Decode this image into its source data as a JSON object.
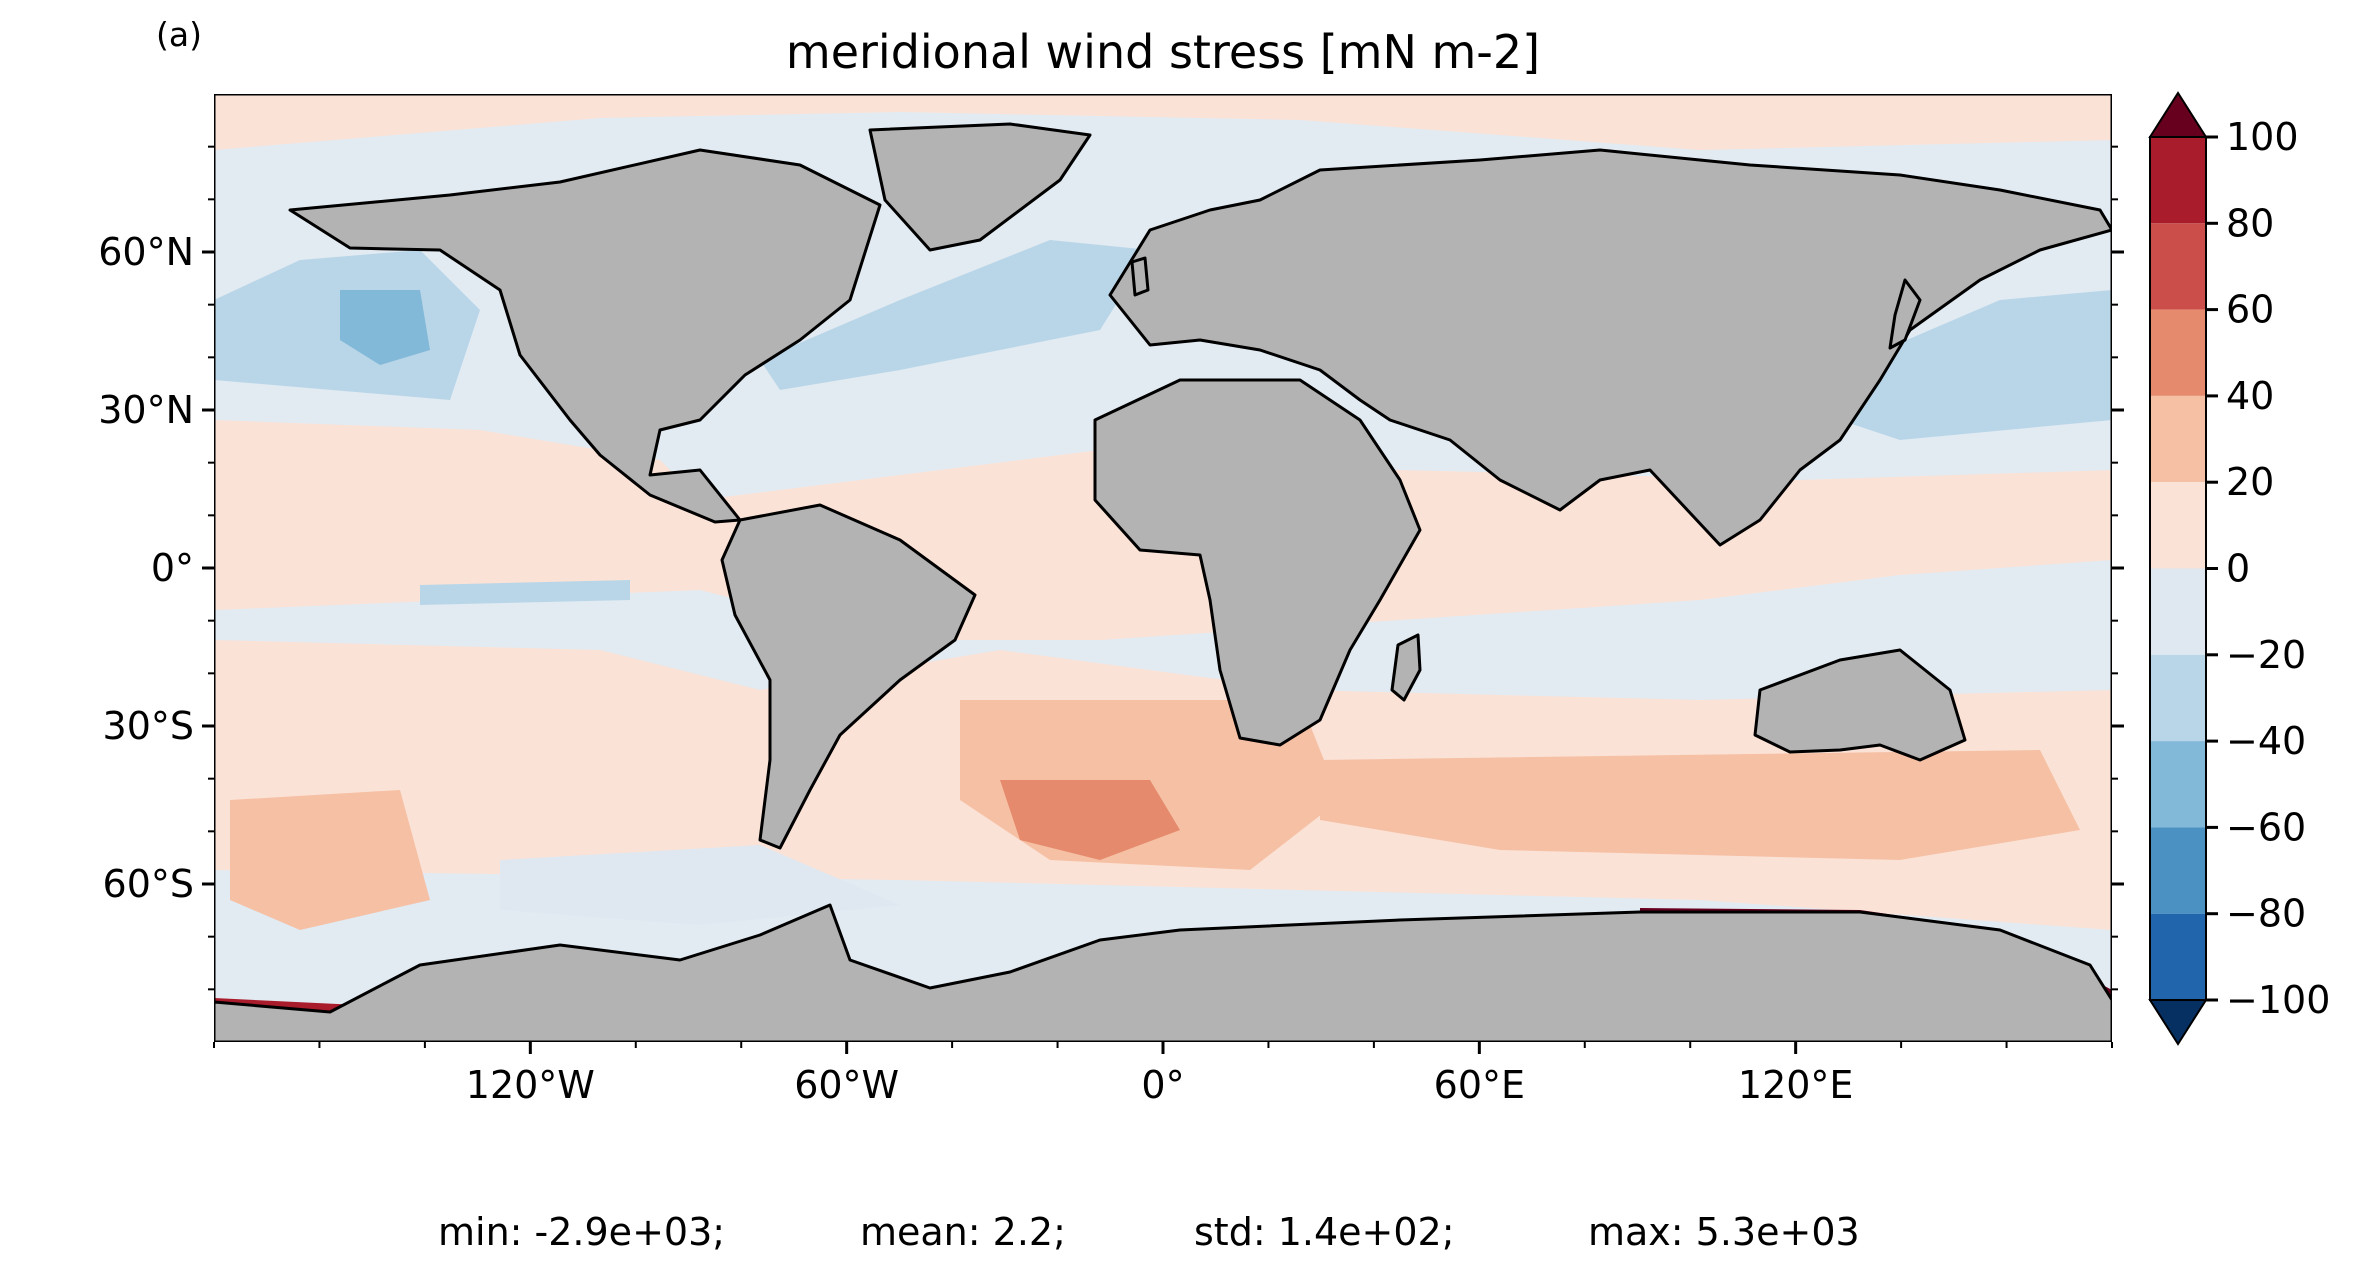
{
  "panel_label": "(a)",
  "title": "meridional wind stress [mN m-2]",
  "axes": {
    "y_ticks": [
      {
        "value": 60,
        "label": "60°N"
      },
      {
        "value": 30,
        "label": "30°N"
      },
      {
        "value": 0,
        "label": "0°"
      },
      {
        "value": -30,
        "label": "30°S"
      },
      {
        "value": -60,
        "label": "60°S"
      }
    ],
    "x_ticks": [
      {
        "value": -120,
        "label": "120°W"
      },
      {
        "value": -60,
        "label": "60°W"
      },
      {
        "value": 0,
        "label": "0°"
      },
      {
        "value": 60,
        "label": "60°E"
      },
      {
        "value": 120,
        "label": "120°E"
      }
    ],
    "lon_range": [
      -180,
      180
    ],
    "lat_range": [
      -90,
      90
    ]
  },
  "colorbar": {
    "levels": [
      100,
      80,
      60,
      40,
      20,
      0,
      -20,
      -40,
      -60,
      -80,
      -100
    ],
    "labels": [
      "100",
      "80",
      "60",
      "40",
      "20",
      "0",
      "−20",
      "−40",
      "−60",
      "−80",
      "−100"
    ],
    "colors": [
      "#a81c2c",
      "#cb4e4a",
      "#e58a6c",
      "#f6c0a4",
      "#fbe2d6",
      "#dfe8f1",
      "#b9d6e8",
      "#82b8d8",
      "#4b92c3",
      "#2166ac"
    ],
    "over_color": "#67001f",
    "under_color": "#053061",
    "extend": "both"
  },
  "colors": {
    "land": "#b3b3b3",
    "coastline": "#000000",
    "ocean_background": "#e2eaf2"
  },
  "stats": {
    "min": "min: -2.9e+03;",
    "mean": "mean: 2.2;",
    "std": "std: 1.4e+02;",
    "max": "max: 5.3e+03"
  }
}
